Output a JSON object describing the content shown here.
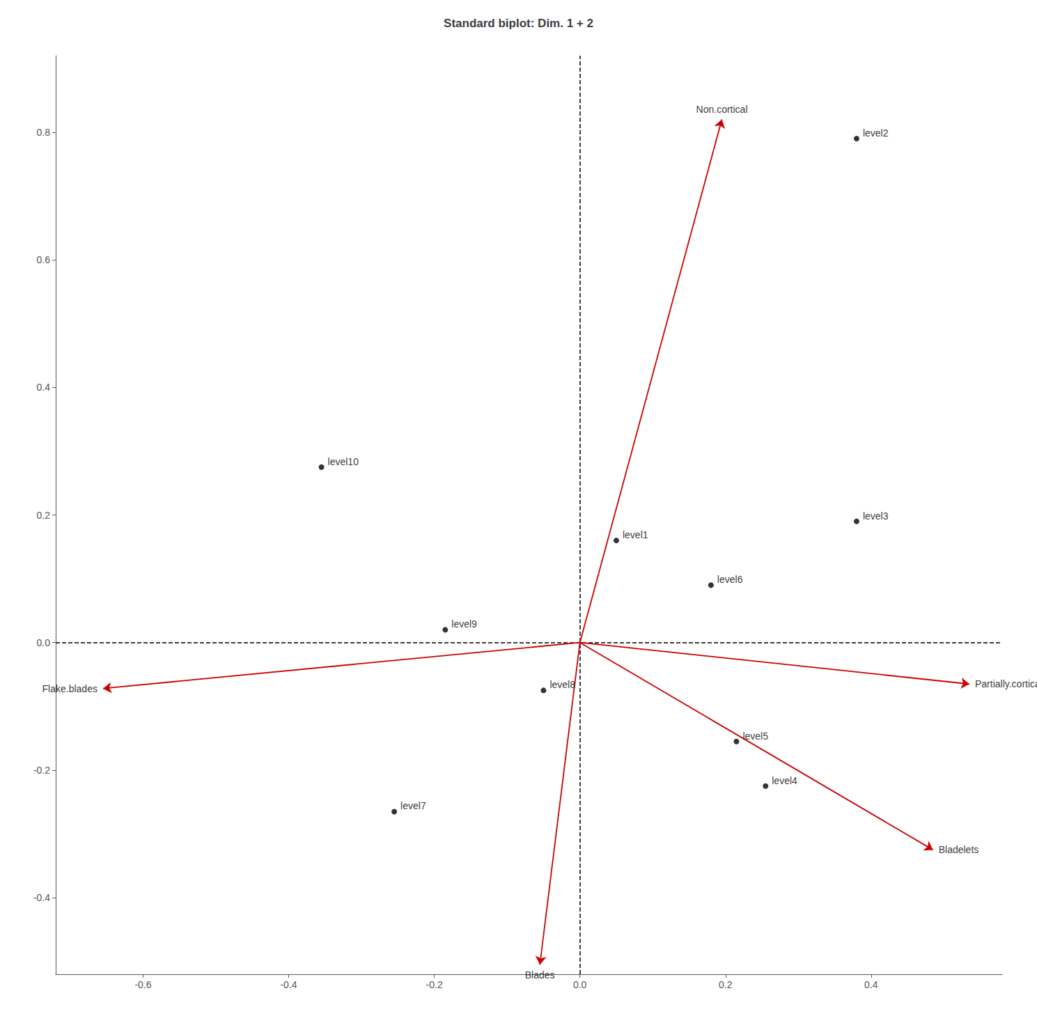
{
  "chart_data": {
    "type": "scatter",
    "title": "Standard biplot: Dim. 1 + 2",
    "xlim": [
      -0.72,
      0.58
    ],
    "ylim": [
      -0.52,
      0.92
    ],
    "xticks": [
      -0.6,
      -0.4,
      -0.2,
      {
        "value": 0,
        "label": "0.0"
      },
      0.2,
      0.4
    ],
    "yticks": [
      -0.4,
      -0.2,
      {
        "value": 0,
        "label": "0.0"
      },
      0.2,
      0.4,
      0.6,
      0.8
    ],
    "grid": false,
    "reference_lines": {
      "x": [
        0
      ],
      "y": [
        0
      ],
      "color": "#000000",
      "line_style": "dashed"
    },
    "series": [
      {
        "type": "scatter",
        "color": "#000000",
        "marker": "circle",
        "labels": [
          "level1",
          "level2",
          "level3",
          "level4",
          "level5",
          "level6",
          "level7",
          "level8",
          "level9",
          "level10"
        ],
        "x": [
          0.05,
          0.38,
          0.38,
          0.255,
          0.215,
          0.18,
          -0.255,
          -0.05,
          -0.185,
          -0.355
        ],
        "y": [
          0.16,
          0.79,
          0.19,
          -0.225,
          -0.155,
          0.09,
          -0.265,
          -0.075,
          0.02,
          0.275
        ]
      },
      {
        "type": "arrow",
        "color": "#cc0000",
        "from": [
          0,
          0
        ],
        "labels": [
          "Non.cortical",
          "Partially.cortical",
          "Flake.blades",
          "Blades",
          "Bladelets"
        ],
        "x": [
          0.195,
          0.535,
          -0.655,
          -0.055,
          0.485
        ],
        "y": [
          0.82,
          -0.065,
          -0.072,
          -0.505,
          -0.325
        ]
      }
    ]
  }
}
